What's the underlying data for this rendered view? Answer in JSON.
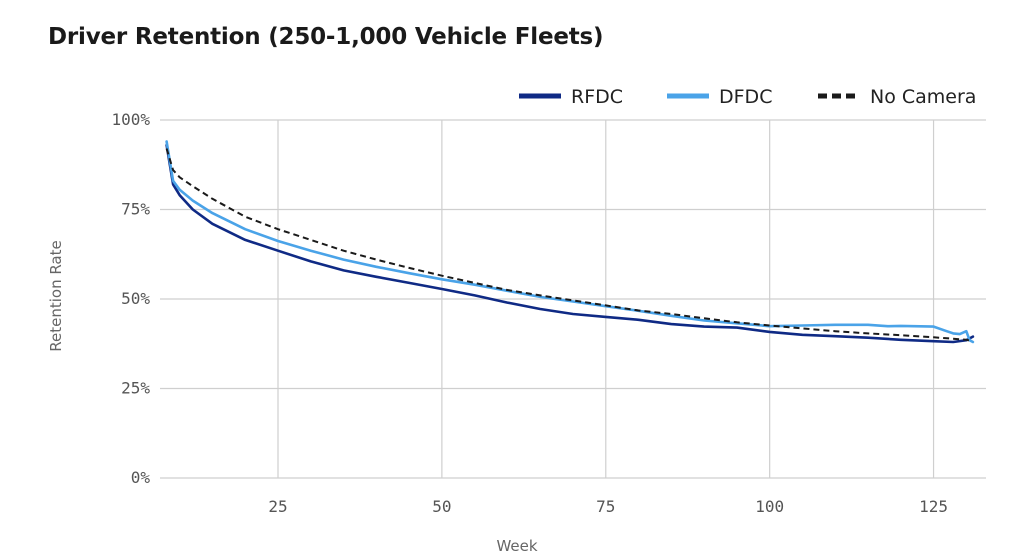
{
  "chart_data": {
    "type": "line",
    "title": "Driver Retention (250-1,000 Vehicle Fleets)",
    "xlabel": "Week",
    "ylabel": "Retention Rate",
    "xlim": [
      7,
      133
    ],
    "ylim": [
      0,
      100
    ],
    "x_ticks": [
      25,
      50,
      75,
      100,
      125
    ],
    "x_tick_labels": [
      "25",
      "50",
      "75",
      "100",
      "125"
    ],
    "y_ticks": [
      0,
      25,
      50,
      75,
      100
    ],
    "y_tick_labels": [
      "0%",
      "25%",
      "50%",
      "75%",
      "100%"
    ],
    "grid": true,
    "legend_position": "top-right",
    "series": [
      {
        "name": "RFDC",
        "color": "#0f2a85",
        "style": "solid",
        "points": [
          [
            8,
            93
          ],
          [
            9,
            82
          ],
          [
            10,
            79
          ],
          [
            12,
            75
          ],
          [
            15,
            71
          ],
          [
            20,
            66.5
          ],
          [
            25,
            63.5
          ],
          [
            30,
            60.5
          ],
          [
            35,
            58
          ],
          [
            40,
            56.2
          ],
          [
            45,
            54.5
          ],
          [
            50,
            52.8
          ],
          [
            55,
            51
          ],
          [
            60,
            49
          ],
          [
            65,
            47.2
          ],
          [
            70,
            45.8
          ],
          [
            75,
            45
          ],
          [
            80,
            44.2
          ],
          [
            85,
            43
          ],
          [
            90,
            42.3
          ],
          [
            95,
            42
          ],
          [
            100,
            40.8
          ],
          [
            105,
            40
          ],
          [
            110,
            39.6
          ],
          [
            115,
            39.2
          ],
          [
            120,
            38.6
          ],
          [
            125,
            38.2
          ],
          [
            128,
            38
          ],
          [
            130,
            38.5
          ],
          [
            131,
            39.5
          ]
        ]
      },
      {
        "name": "DFDC",
        "color": "#4aa3e8",
        "style": "solid",
        "points": [
          [
            8,
            94
          ],
          [
            9,
            83
          ],
          [
            10,
            80.5
          ],
          [
            12,
            77.5
          ],
          [
            15,
            74
          ],
          [
            20,
            69.5
          ],
          [
            25,
            66.2
          ],
          [
            30,
            63.5
          ],
          [
            35,
            61
          ],
          [
            40,
            59
          ],
          [
            45,
            57.2
          ],
          [
            50,
            55.5
          ],
          [
            55,
            54
          ],
          [
            60,
            52.3
          ],
          [
            65,
            50.6
          ],
          [
            70,
            49.3
          ],
          [
            75,
            48
          ],
          [
            80,
            46.7
          ],
          [
            85,
            45.3
          ],
          [
            90,
            44
          ],
          [
            95,
            43.2
          ],
          [
            100,
            42.4
          ],
          [
            105,
            42.6
          ],
          [
            110,
            42.8
          ],
          [
            115,
            42.8
          ],
          [
            118,
            42.4
          ],
          [
            120,
            42.5
          ],
          [
            125,
            42.3
          ],
          [
            127,
            41
          ],
          [
            128,
            40.4
          ],
          [
            129,
            40.2
          ],
          [
            130,
            41
          ],
          [
            130.5,
            38.5
          ],
          [
            131,
            38
          ]
        ]
      },
      {
        "name": "No Camera",
        "color": "#1a1a1a",
        "style": "dashed",
        "points": [
          [
            8,
            92
          ],
          [
            9,
            86
          ],
          [
            10,
            84
          ],
          [
            12,
            81.5
          ],
          [
            15,
            78
          ],
          [
            20,
            73
          ],
          [
            25,
            69.5
          ],
          [
            30,
            66.5
          ],
          [
            35,
            63.5
          ],
          [
            40,
            61
          ],
          [
            45,
            58.7
          ],
          [
            50,
            56.5
          ],
          [
            55,
            54.5
          ],
          [
            60,
            52.5
          ],
          [
            65,
            51
          ],
          [
            70,
            49.6
          ],
          [
            75,
            48.2
          ],
          [
            80,
            46.8
          ],
          [
            85,
            45.8
          ],
          [
            90,
            44.6
          ],
          [
            95,
            43.5
          ],
          [
            100,
            42.6
          ],
          [
            105,
            41.8
          ],
          [
            110,
            41
          ],
          [
            115,
            40.4
          ],
          [
            120,
            39.9
          ],
          [
            125,
            39.3
          ],
          [
            128,
            38.9
          ],
          [
            130,
            38.6
          ],
          [
            131,
            38.2
          ]
        ]
      }
    ]
  }
}
